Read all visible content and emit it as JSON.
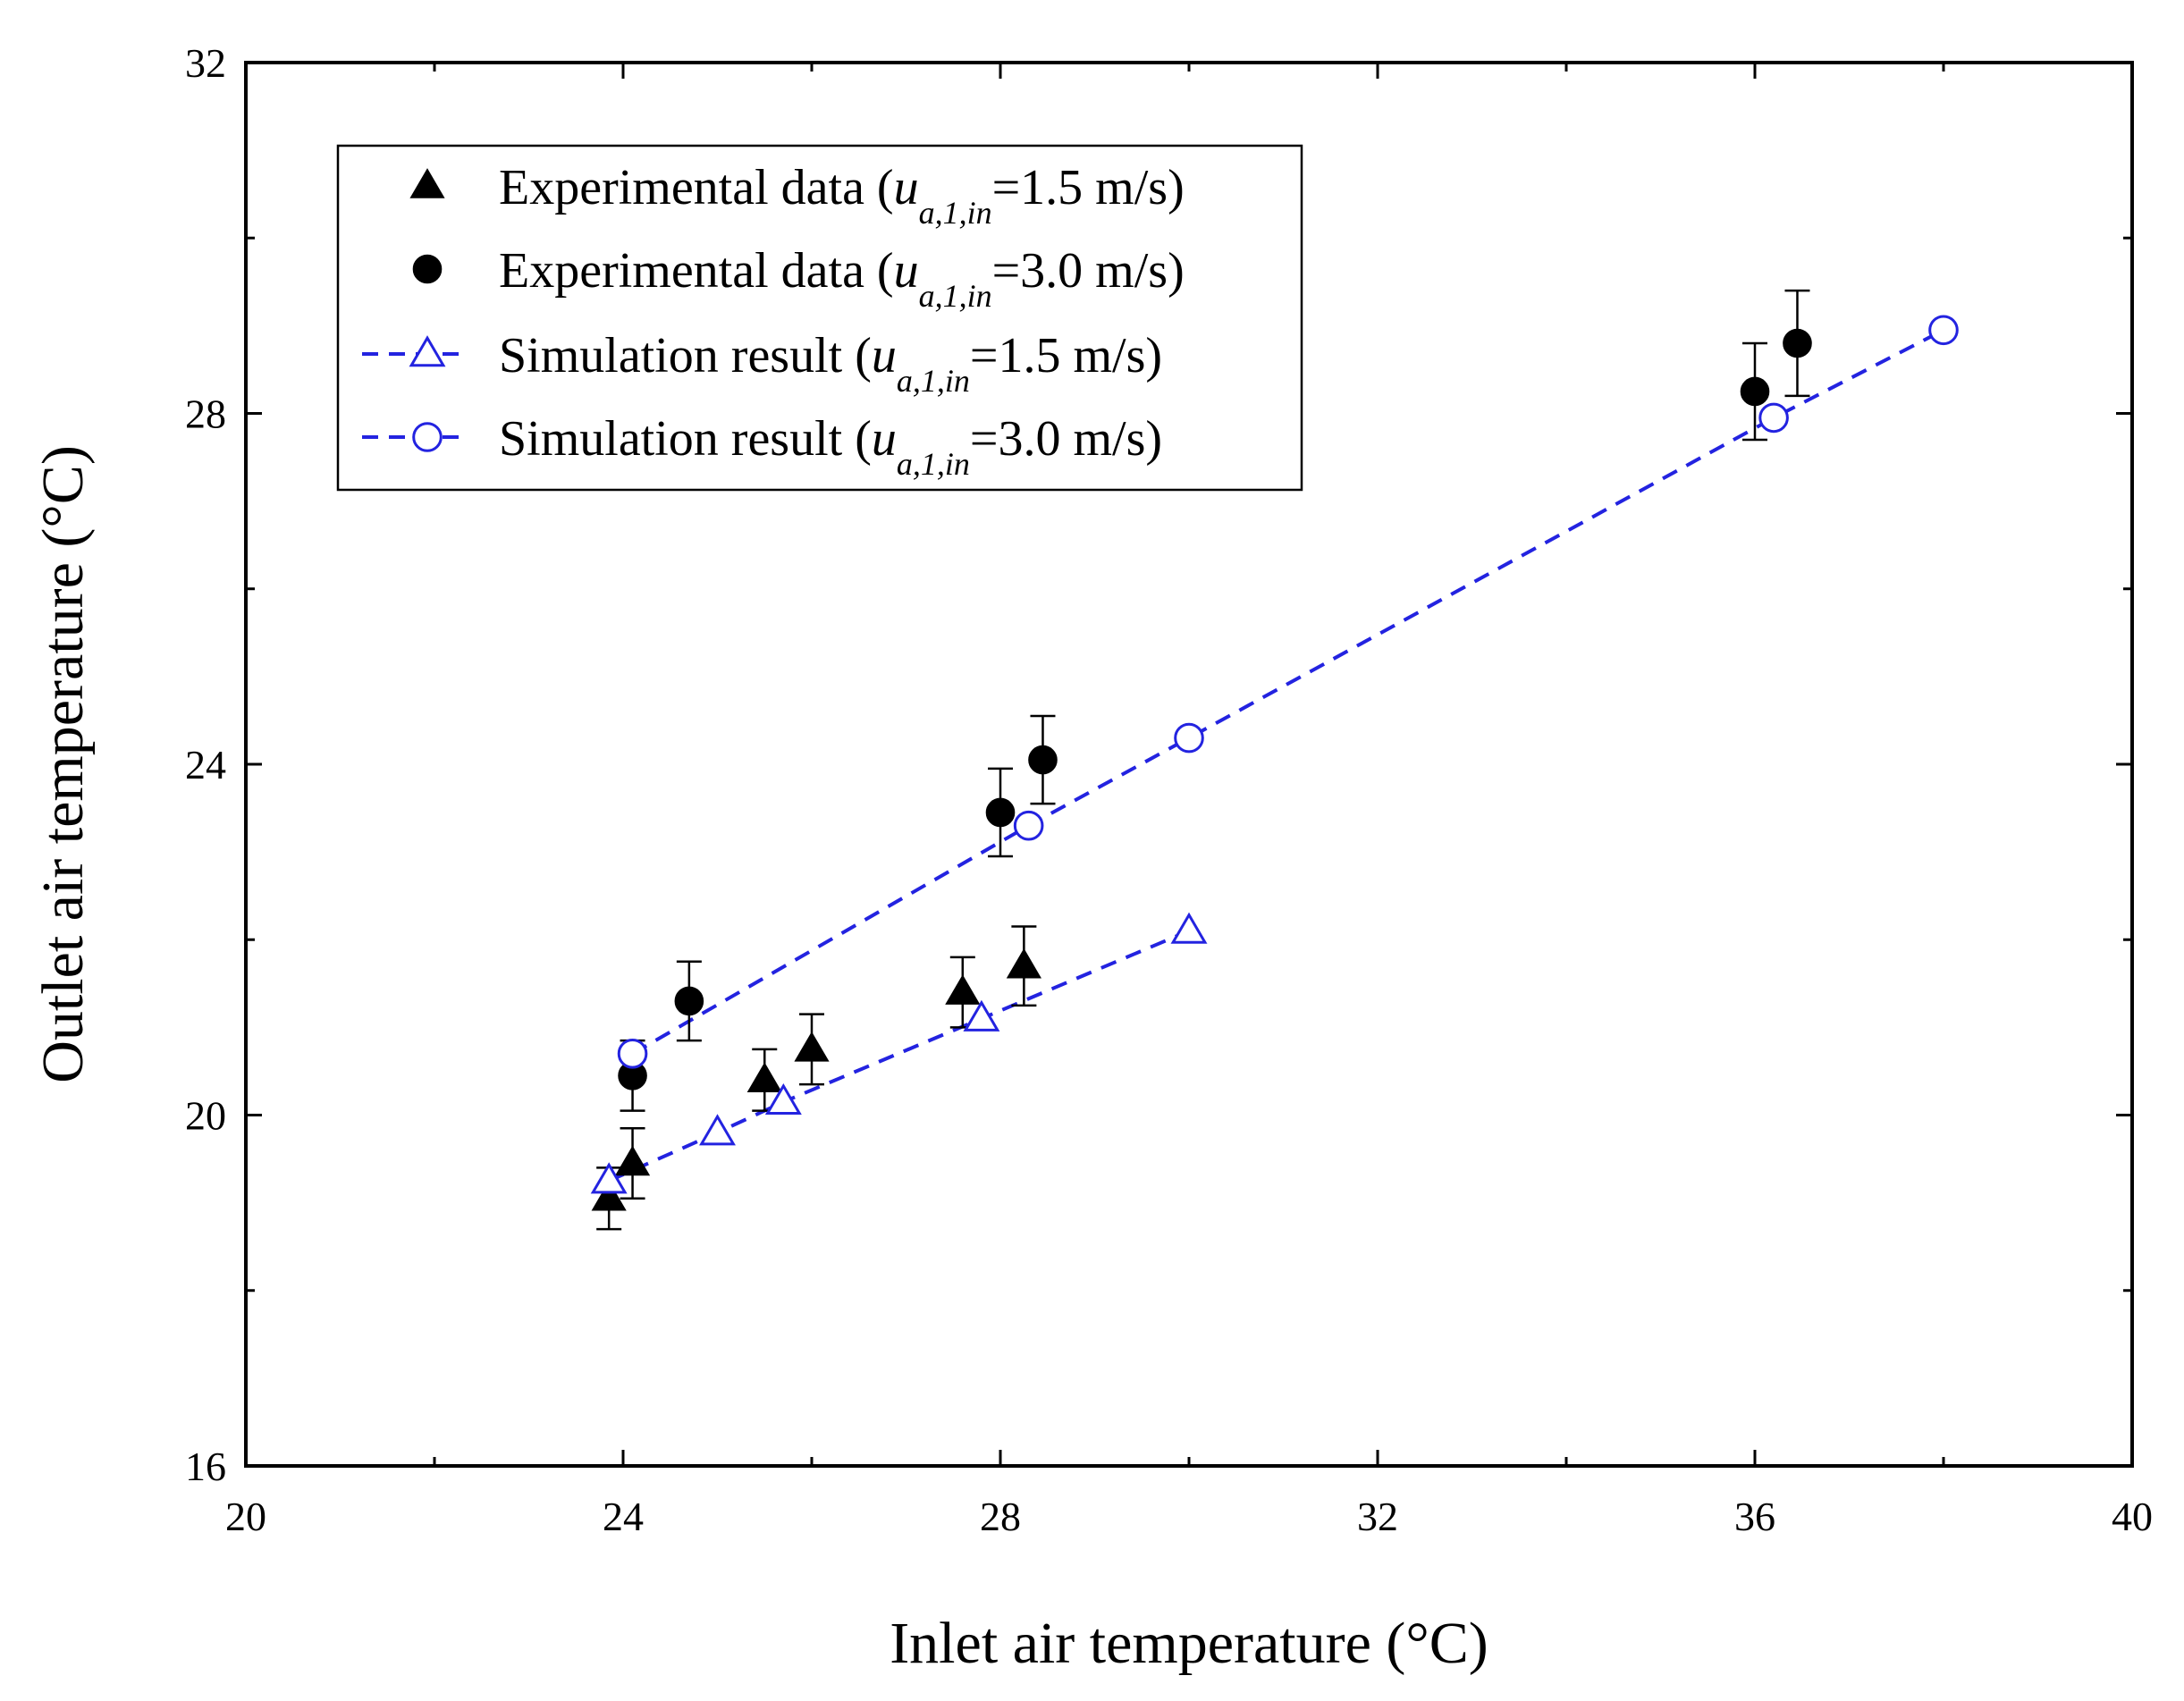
{
  "chart_data": {
    "type": "scatter",
    "title": "",
    "xlabel": "Inlet air temperature (°C)",
    "ylabel": "Outlet air temperature (°C)",
    "xlim": [
      20,
      40
    ],
    "ylim": [
      16,
      32
    ],
    "xticks": [
      20,
      24,
      28,
      32,
      36,
      40
    ],
    "yticks": [
      16,
      20,
      24,
      28,
      32
    ],
    "x_minor_step": 2,
    "y_minor_step": 2,
    "legend_position": "top-left",
    "series": [
      {
        "name": "Experimental data",
        "velocity": "1.5 m/s",
        "marker": "filled-triangle",
        "color": "#000000",
        "line": "none",
        "x": [
          23.85,
          24.1,
          25.5,
          26.0,
          27.6,
          28.25
        ],
        "y": [
          19.05,
          19.45,
          20.4,
          20.75,
          21.4,
          21.7
        ],
        "err": [
          0.35,
          0.4,
          0.35,
          0.4,
          0.4,
          0.45
        ]
      },
      {
        "name": "Experimental data",
        "velocity": "3.0 m/s",
        "marker": "filled-circle",
        "color": "#000000",
        "line": "none",
        "x": [
          24.1,
          24.7,
          28.0,
          28.45,
          36.0,
          36.45
        ],
        "y": [
          20.45,
          21.3,
          23.45,
          24.05,
          28.25,
          28.8
        ],
        "err": [
          0.4,
          0.45,
          0.5,
          0.5,
          0.55,
          0.6
        ]
      },
      {
        "name": "Simulation result",
        "velocity": "1.5 m/s",
        "marker": "open-triangle",
        "color": "#2323e0",
        "line": "dashed",
        "x": [
          23.85,
          25.0,
          25.7,
          27.8,
          30.0
        ],
        "y": [
          19.25,
          19.8,
          20.15,
          21.1,
          22.1
        ]
      },
      {
        "name": "Simulation result",
        "velocity": "3.0 m/s",
        "marker": "open-circle",
        "color": "#2323e0",
        "line": "dashed",
        "x": [
          24.1,
          28.3,
          30.0,
          36.2,
          38.0
        ],
        "y": [
          20.7,
          23.3,
          24.3,
          27.95,
          28.95
        ]
      }
    ],
    "legend": [
      {
        "prefix": "Experimental data (",
        "var": "u",
        "sub": "a,1,in",
        "suffix": "=1.5 m/s)"
      },
      {
        "prefix": "Experimental data (",
        "var": "u",
        "sub": "a,1,in",
        "suffix": "=3.0 m/s)"
      },
      {
        "prefix": "Simulation result (",
        "var": "u",
        "sub": "a,1,in",
        "suffix": "=1.5 m/s)"
      },
      {
        "prefix": "Simulation result (",
        "var": "u",
        "sub": "a,1,in",
        "suffix": "=3.0 m/s)"
      }
    ]
  }
}
